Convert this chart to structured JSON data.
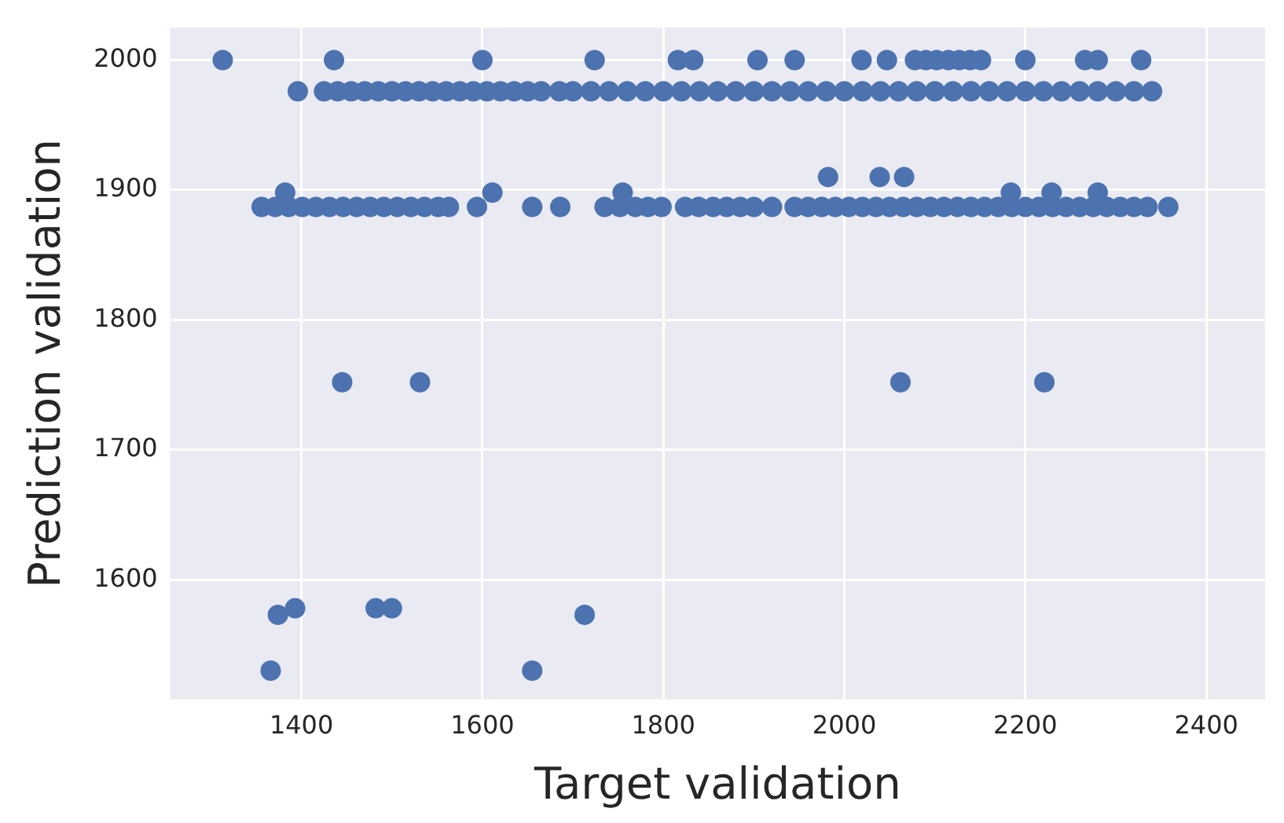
{
  "chart_data": {
    "type": "scatter",
    "xlabel": "Target validation",
    "ylabel": "Prediction validation",
    "xlim": [
      1255,
      2465
    ],
    "ylim": [
      1508,
      2025
    ],
    "xticks": [
      1400,
      1600,
      1800,
      2000,
      2200,
      2400
    ],
    "yticks": [
      1600,
      1700,
      1800,
      1900,
      2000
    ],
    "grid": true,
    "marker": "circle",
    "series": [
      {
        "color": "#4c72b0",
        "x": [
          1313,
          1436,
          1600,
          1724,
          1816,
          1833,
          1904,
          1945,
          2019,
          2047,
          2078,
          2090,
          2102,
          2115,
          2127,
          2139,
          2151,
          2200,
          2266,
          2280,
          2328
        ],
        "values": [
          2000,
          2000,
          2000,
          2000,
          2000,
          2000,
          2000,
          2000,
          2000,
          2000,
          2000,
          2000,
          2000,
          2000,
          2000,
          2000,
          2000,
          2000,
          2000,
          2000,
          2000
        ]
      },
      {
        "color": "#4c72b0",
        "x": [
          1396,
          1425,
          1440,
          1455,
          1470,
          1485,
          1500,
          1515,
          1530,
          1545,
          1560,
          1575,
          1590,
          1605,
          1620,
          1635,
          1650,
          1665,
          1685,
          1700,
          1720,
          1740,
          1760,
          1780,
          1800,
          1820,
          1840,
          1860,
          1880,
          1900,
          1920,
          1940,
          1960,
          1980,
          2000,
          2020,
          2040,
          2060,
          2080,
          2100,
          2120,
          2140,
          2160,
          2180,
          2200,
          2220,
          2240,
          2260,
          2280,
          2300,
          2320,
          2340
        ],
        "values": [
          1976,
          1976,
          1976,
          1976,
          1976,
          1976,
          1976,
          1976,
          1976,
          1976,
          1976,
          1976,
          1976,
          1976,
          1976,
          1976,
          1976,
          1976,
          1976,
          1976,
          1976,
          1976,
          1976,
          1976,
          1976,
          1976,
          1976,
          1976,
          1976,
          1976,
          1976,
          1976,
          1976,
          1976,
          1976,
          1976,
          1976,
          1976,
          1976,
          1976,
          1976,
          1976,
          1976,
          1976,
          1976,
          1976,
          1976,
          1976,
          1976,
          1976,
          1976,
          1976
        ]
      },
      {
        "color": "#4c72b0",
        "x": [
          1982,
          2039,
          2066
        ],
        "values": [
          1910,
          1910,
          1910
        ]
      },
      {
        "color": "#4c72b0",
        "x": [
          1382,
          1611,
          1755,
          2184,
          2229,
          2280
        ],
        "values": [
          1898,
          1898,
          1898,
          1898,
          1898,
          1898
        ]
      },
      {
        "color": "#4c72b0",
        "x": [
          1356,
          1371,
          1386,
          1401,
          1416,
          1431,
          1446,
          1461,
          1476,
          1491,
          1506,
          1521,
          1536,
          1551,
          1563,
          1594,
          1655,
          1686,
          1735,
          1752,
          1769,
          1783,
          1798,
          1824,
          1839,
          1855,
          1870,
          1885,
          1900,
          1920,
          1945,
          1960,
          1975,
          1990,
          2005,
          2020,
          2035,
          2050,
          2065,
          2080,
          2095,
          2110,
          2125,
          2140,
          2155,
          2170,
          2185,
          2200,
          2215,
          2230,
          2245,
          2260,
          2275,
          2290,
          2305,
          2320,
          2335,
          2358
        ],
        "values": [
          1887,
          1887,
          1887,
          1887,
          1887,
          1887,
          1887,
          1887,
          1887,
          1887,
          1887,
          1887,
          1887,
          1887,
          1887,
          1887,
          1887,
          1887,
          1887,
          1887,
          1887,
          1887,
          1887,
          1887,
          1887,
          1887,
          1887,
          1887,
          1887,
          1887,
          1887,
          1887,
          1887,
          1887,
          1887,
          1887,
          1887,
          1887,
          1887,
          1887,
          1887,
          1887,
          1887,
          1887,
          1887,
          1887,
          1887,
          1887,
          1887,
          1887,
          1887,
          1887,
          1887,
          1887,
          1887,
          1887,
          1887,
          1887
        ]
      },
      {
        "color": "#4c72b0",
        "x": [
          1445,
          1531,
          2062,
          2221
        ],
        "values": [
          1752,
          1752,
          1752,
          1752
        ]
      },
      {
        "color": "#4c72b0",
        "x": [
          1366,
          1655,
          1713,
          1374,
          1393,
          1482,
          1500
        ],
        "values": [
          1530,
          1530,
          1573,
          1573,
          1578,
          1578,
          1578
        ]
      }
    ]
  }
}
